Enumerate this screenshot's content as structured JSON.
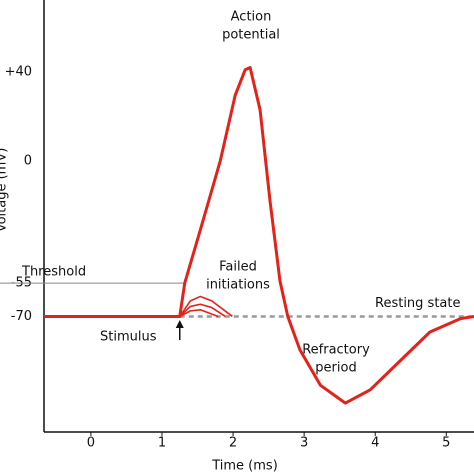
{
  "chart_data": {
    "type": "line",
    "x_label": "Time (ms)",
    "y_label": "Voltage (mV)",
    "xlim": [
      -0.66,
      5.39
    ],
    "ylim": [
      -122,
      72.4
    ],
    "xticks": [
      0,
      1,
      2,
      3,
      4,
      5
    ],
    "yticks": [
      {
        "value": 40,
        "label": "+40"
      },
      0,
      -55,
      -70
    ],
    "color": "#e2231a",
    "series": [
      {
        "x": [
          -0.66,
          1.25,
          1.32,
          1.54,
          1.82,
          2.03,
          2.17,
          2.24,
          2.38,
          2.52,
          2.66,
          2.77,
          2.94,
          3.23,
          3.58,
          3.93,
          4.35,
          4.77,
          5.2,
          5.39
        ],
        "values": [
          -70,
          -70,
          -55,
          -31,
          0,
          29.5,
          41,
          42,
          23,
          -18,
          -54,
          -70,
          -85,
          -101,
          -109,
          -103,
          -90,
          -77,
          -71,
          -70
        ]
      },
      {
        "x": [
          1.25,
          1.4,
          1.54,
          1.7,
          1.99
        ],
        "values": [
          -70,
          -63,
          -61,
          -63,
          -70
        ]
      },
      {
        "x": [
          1.25,
          1.4,
          1.54,
          1.7,
          1.89
        ],
        "values": [
          -70,
          -65.5,
          -64.5,
          -66,
          -70
        ]
      },
      {
        "x": [
          1.25,
          1.4,
          1.54,
          1.79
        ],
        "values": [
          -70,
          -67.5,
          -67,
          -70
        ]
      }
    ],
    "resting": {
      "label": "Resting state",
      "value": -70,
      "x": [
        1.25,
        5.39
      ],
      "color": "#999999"
    },
    "threshold": {
      "label": "Threshold",
      "value": -55
    },
    "stimulus": {
      "label": "Stimulus",
      "x": 1.25
    },
    "annotations": [
      {
        "text": [
          "Action",
          "potential"
        ]
      },
      {
        "text": [
          "Failed",
          "initiations"
        ]
      },
      {
        "text": [
          "Refractory",
          "period"
        ]
      }
    ]
  }
}
